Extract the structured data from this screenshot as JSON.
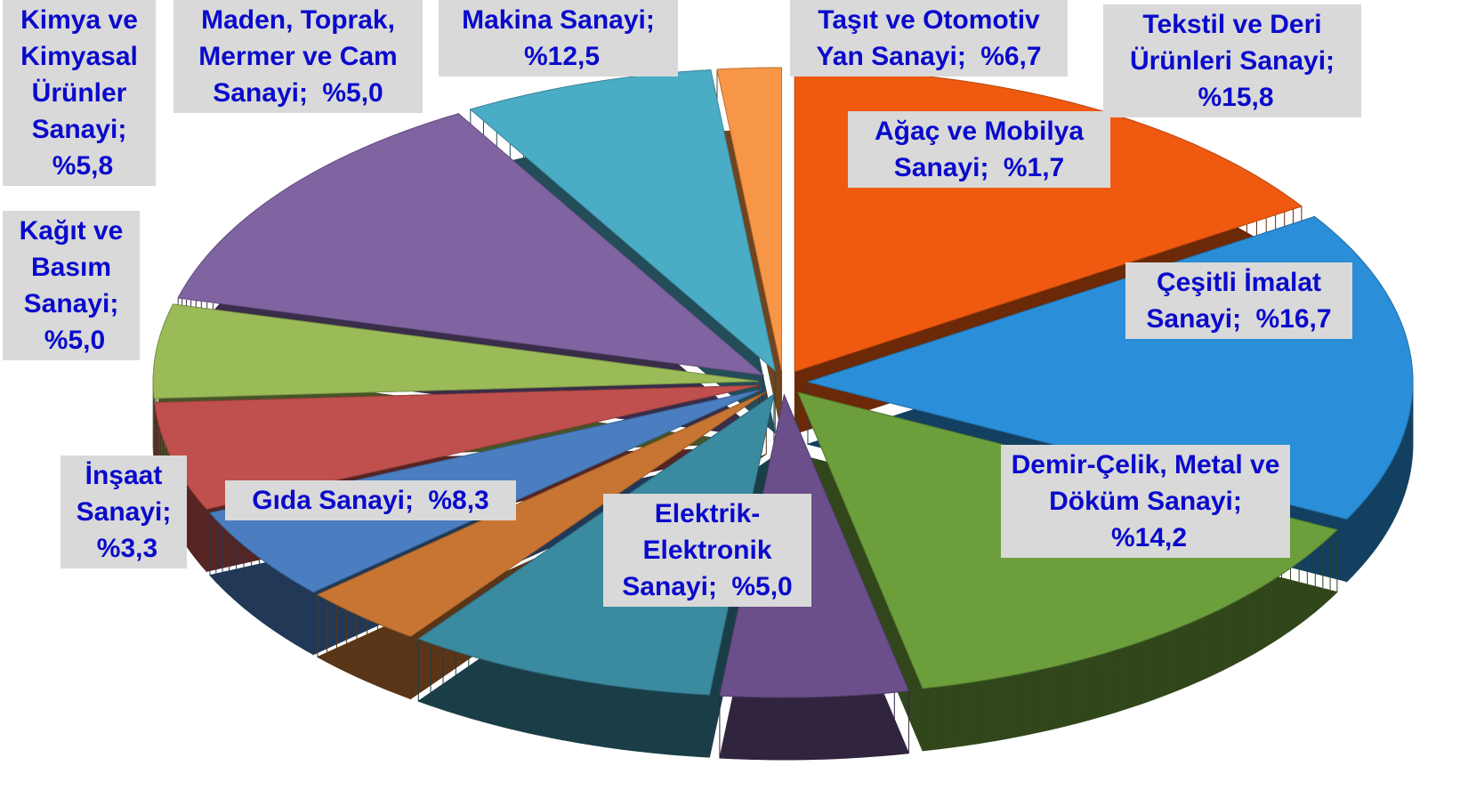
{
  "chart_data": {
    "type": "pie",
    "categories": [
      "Tekstil ve Deri Ürünleri Sanayi;",
      "Çeşitli İmalat Sanayi;",
      "Demir-Çelik, Metal ve Döküm Sanayi;",
      "Elektrik-Elektronik Sanayi;",
      "Gıda Sanayi;",
      "İnşaat Sanayi;",
      "Kağıt ve Basım Sanayi;",
      "Kimya ve Kimyasal Ürünler Sanayi;",
      "Maden, Toprak, Mermer ve Cam Sanayi;",
      "Makina Sanayi;",
      "Taşıt ve Otomotiv Yan Sanayi;",
      "Ağaç ve Mobilya Sanayi;"
    ],
    "values": [
      15.8,
      16.7,
      14.2,
      5.0,
      8.3,
      3.3,
      5.0,
      5.8,
      5.0,
      12.5,
      6.7,
      1.7
    ],
    "value_labels": [
      "%15,8",
      "%16,7",
      "%14,2",
      "%5,0",
      "%8,3",
      "%3,3",
      "%5,0",
      "%5,8",
      "%5,0",
      "%12,5",
      "%6,7",
      "%1,7"
    ],
    "colors": [
      "#f05a10",
      "#2a8ed8",
      "#6c9e3c",
      "#6b4f8a",
      "#3a8aa0",
      "#c87533",
      "#4a7ec0",
      "#c0504d",
      "#9bbb59",
      "#8064a2",
      "#4bacc6",
      "#f79646"
    ]
  }
}
